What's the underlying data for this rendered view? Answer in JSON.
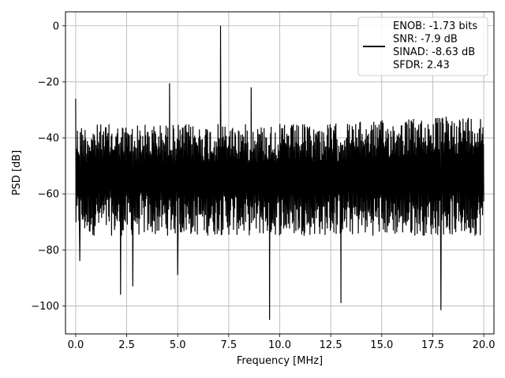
{
  "chart_data": {
    "type": "line",
    "title": "",
    "xlabel": "Frequency [MHz]",
    "ylabel": "PSD [dB]",
    "xlim": [
      -0.5,
      20.5
    ],
    "ylim": [
      -110,
      5
    ],
    "grid": true,
    "x_ticks": [
      0.0,
      2.5,
      5.0,
      7.5,
      10.0,
      12.5,
      15.0,
      17.5,
      20.0
    ],
    "x_tick_labels": [
      "0.0",
      "2.5",
      "5.0",
      "7.5",
      "10.0",
      "12.5",
      "15.0",
      "17.5",
      "20.0"
    ],
    "y_ticks": [
      0,
      -20,
      -40,
      -60,
      -80,
      -100
    ],
    "y_tick_labels": [
      "0",
      "−20",
      "−40",
      "−60",
      "−80",
      "−100"
    ],
    "legend": {
      "placement": "top-right",
      "lines": [
        "ENOB: -1.73 bits",
        "SNR: -7.9 dB",
        "SINAD: -8.63 dB",
        "SFDR: 2.43"
      ]
    },
    "series": [
      {
        "color": "#000000",
        "noise_floor_band_db": [
          -75,
          -35
        ],
        "noise_floor_typical_db": -57,
        "peaks": [
          {
            "x": 0.0,
            "y": -26
          },
          {
            "x": 4.6,
            "y": -20.5
          },
          {
            "x": 7.1,
            "y": 0
          },
          {
            "x": 8.6,
            "y": -22
          }
        ],
        "dips": [
          {
            "x": 0.2,
            "y": -84
          },
          {
            "x": 2.2,
            "y": -96
          },
          {
            "x": 2.8,
            "y": -93
          },
          {
            "x": 5.0,
            "y": -89
          },
          {
            "x": 9.5,
            "y": -105
          },
          {
            "x": 13.0,
            "y": -99
          },
          {
            "x": 17.9,
            "y": -101.5
          }
        ]
      }
    ]
  }
}
